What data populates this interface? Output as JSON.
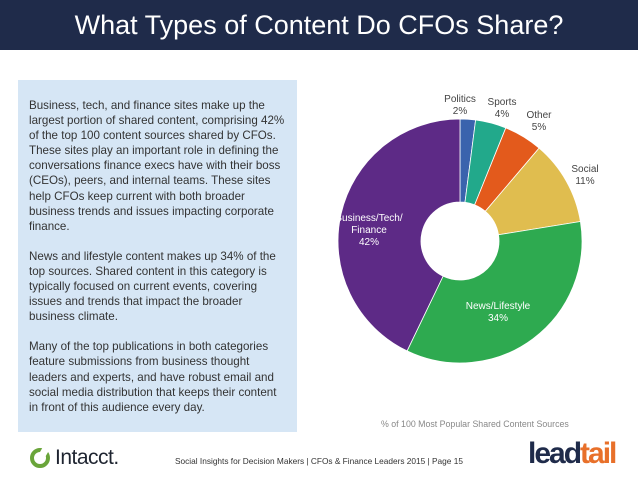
{
  "title": "What Types of Content Do CFOs Share?",
  "paragraphs": [
    "Business, tech, and finance sites make up the largest portion of shared content, comprising 42% of the top 100 content sources shared by CFOs. These sites play an important role in defining the conversations finance execs have with their boss (CEOs), peers, and internal teams. These sites help CFOs keep current with both broader business trends and issues impacting corporate finance.",
    "News and lifestyle content makes up 34% of the top sources. Shared content in this category is typically focused on current events, covering issues and trends that impact the broader business climate.",
    "Many of the top publications in both categories feature submissions from business thought leaders and experts, and have robust email and social media distribution that keeps their content in front of this audience every day."
  ],
  "chart_data": {
    "type": "pie",
    "donut": true,
    "caption": "% of 100 Most Popular Shared Content Sources",
    "slices": [
      {
        "label": "Politics",
        "value": 2,
        "pct": "2%",
        "color": "#3a63ad"
      },
      {
        "label": "Sports",
        "value": 4,
        "pct": "4%",
        "color": "#22a98b"
      },
      {
        "label": "Other",
        "value": 5,
        "pct": "5%",
        "color": "#e35a1c"
      },
      {
        "label": "Social",
        "value": 11,
        "pct": "11%",
        "color": "#e0bd4f"
      },
      {
        "label": "News/Lifestyle",
        "value": 34,
        "pct": "34%",
        "color": "#2eaa50"
      },
      {
        "label": "Business/Tech/Finance",
        "value": 42,
        "pct": "42%",
        "color": "#5d2a86"
      }
    ]
  },
  "footer": {
    "text": "Social Insights for Decision Makers  |  CFOs & Finance Leaders 2015  |  Page 15",
    "logo_left": "Intacct.",
    "logo_right_a": "lead",
    "logo_right_b": "tail"
  }
}
